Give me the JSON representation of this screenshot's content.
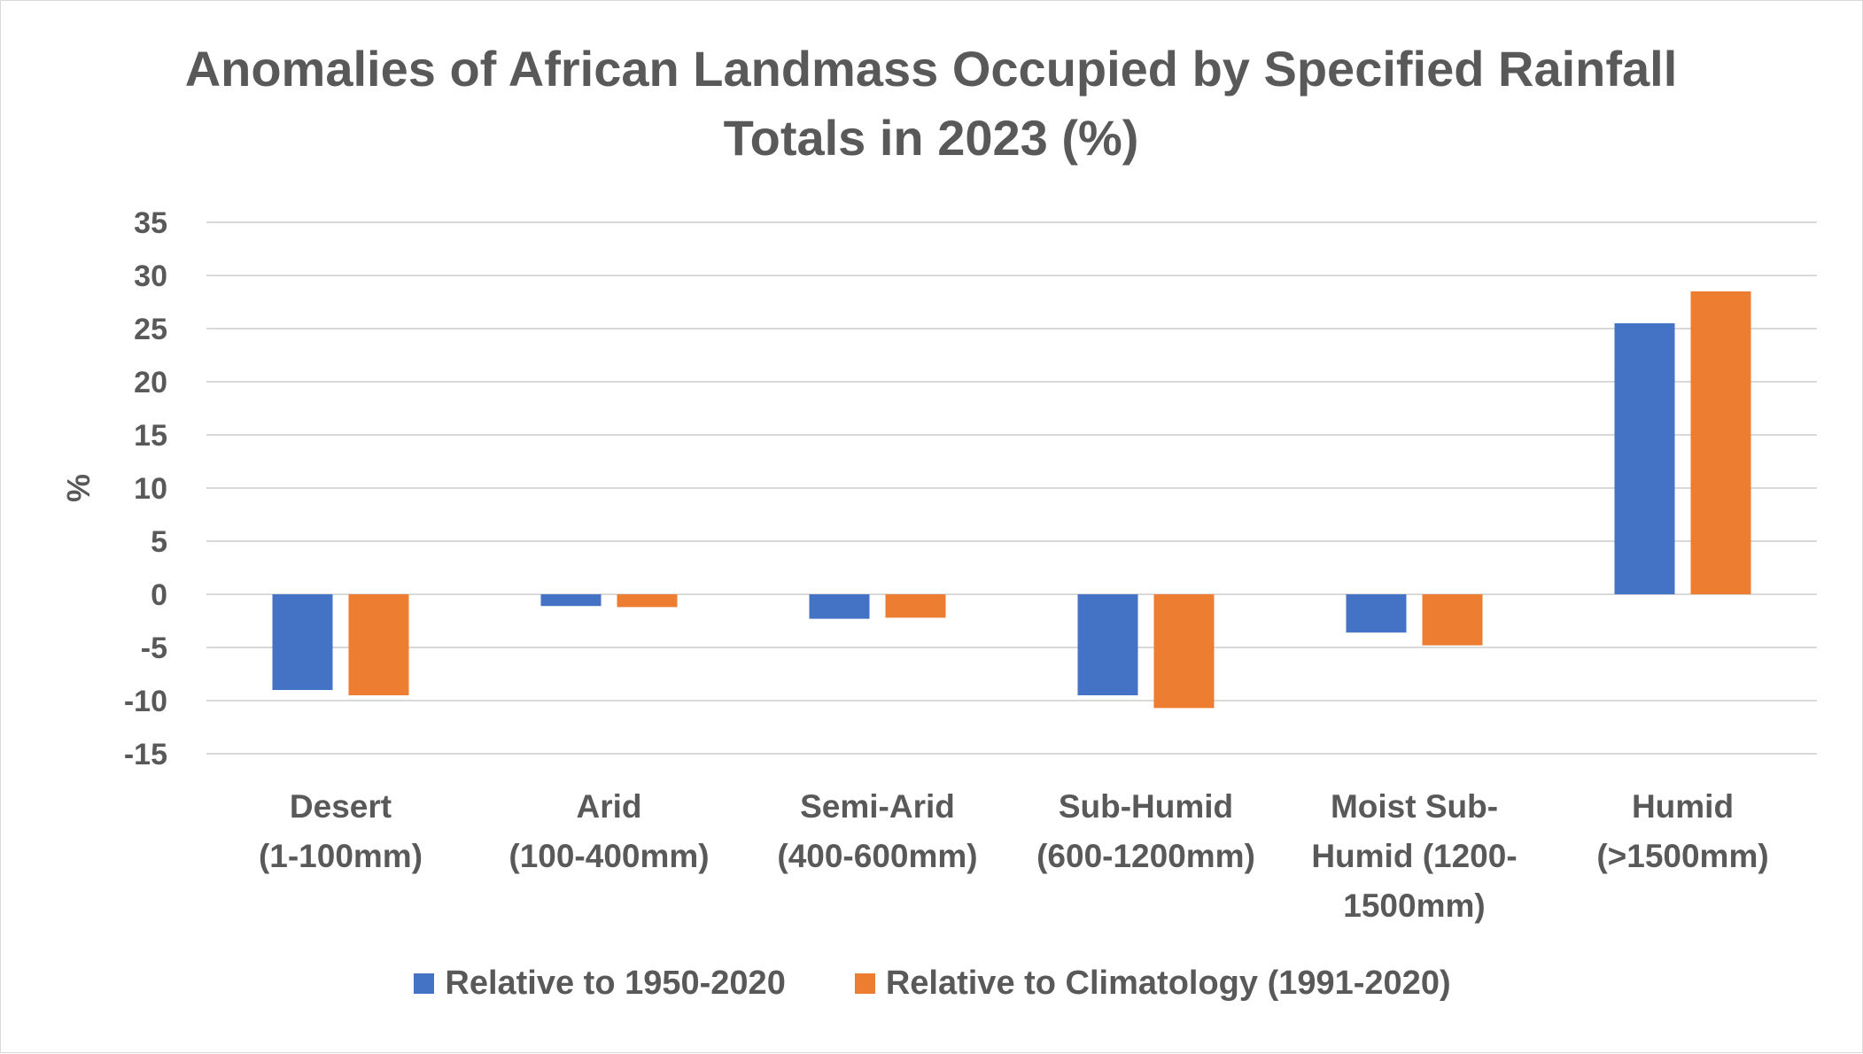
{
  "chart_data": {
    "type": "bar",
    "title": "Anomalies of African Landmass Occupied by Specified Rainfall Totals in 2023 (%)",
    "ylabel": "%",
    "xlabel": "",
    "ylim": [
      -15,
      35
    ],
    "yticks": [
      35,
      30,
      25,
      20,
      15,
      10,
      5,
      0,
      -5,
      -10,
      -15
    ],
    "grid": true,
    "legend_position": "bottom",
    "categories": [
      [
        "Desert",
        "(1-100mm)"
      ],
      [
        "Arid",
        "(100-400mm)"
      ],
      [
        "Semi-Arid",
        "(400-600mm)"
      ],
      [
        "Sub-Humid",
        "(600-1200mm)"
      ],
      [
        "Moist Sub-",
        "Humid (1200-",
        "1500mm)"
      ],
      [
        "Humid",
        "(>1500mm)"
      ]
    ],
    "series": [
      {
        "name": "Relative to 1950-2020",
        "color": "#4472c4",
        "values": [
          -9.0,
          -1.1,
          -2.3,
          -9.5,
          -3.6,
          25.5
        ]
      },
      {
        "name": "Relative to Climatology (1991-2020)",
        "color": "#ed7d31",
        "values": [
          -9.5,
          -1.2,
          -2.2,
          -10.7,
          -4.8,
          28.5
        ]
      }
    ]
  }
}
